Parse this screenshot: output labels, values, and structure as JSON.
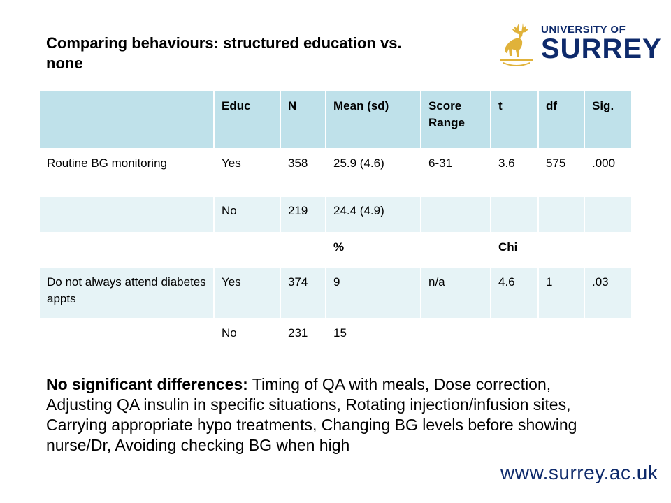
{
  "slide": {
    "title": "Comparing behaviours: structured education vs. none",
    "logo": {
      "top": "UNIVERSITY OF",
      "bottom": "SURREY"
    },
    "note_label": "No significant differences:",
    "note_text": " Timing of QA with meals, Dose correction, Adjusting QA insulin in specific situations, Rotating injection/infusion sites, Carrying appropriate hypo treatments, Changing BG levels before showing nurse/Dr, Avoiding checking BG when high",
    "url": "www.surrey.ac.uk"
  },
  "table": {
    "headers": [
      "",
      "Educ",
      "N",
      "Mean (sd)",
      "Score Range",
      "t",
      "df",
      "Sig."
    ],
    "rows": [
      [
        "Routine BG monitoring",
        "Yes",
        "358",
        "25.9 (4.6)",
        "6-31",
        "3.6",
        "575",
        ".000"
      ],
      [
        "",
        "No",
        "219",
        "24.4 (4.9)",
        "",
        "",
        "",
        ""
      ],
      [
        "",
        "",
        "",
        "%",
        "",
        "Chi",
        "",
        ""
      ],
      [
        "Do not always attend diabetes appts",
        "Yes",
        "374",
        "9",
        "n/a",
        "4.6",
        "1",
        ".03"
      ],
      [
        "",
        "No",
        "231",
        "15",
        "",
        "",
        "",
        ""
      ]
    ]
  },
  "colors": {
    "header": "#bfe1ea",
    "row_alt": "#e6f3f6",
    "brand": "#0e2a6b",
    "stag": "#e0b23a"
  }
}
